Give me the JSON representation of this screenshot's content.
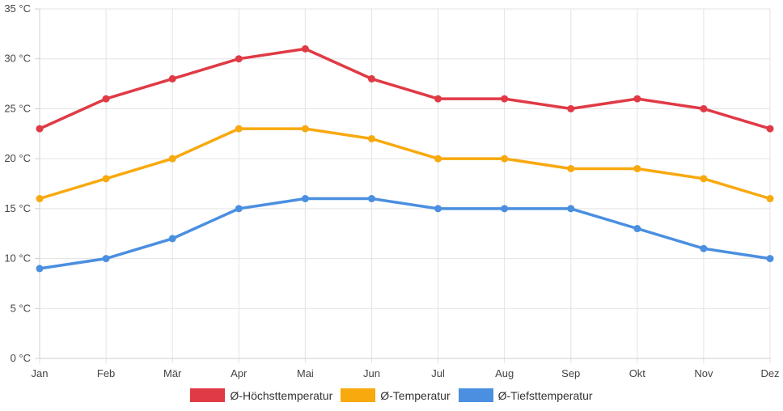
{
  "chart_data": {
    "type": "line",
    "title": "",
    "xlabel": "",
    "ylabel": "",
    "categories": [
      "Jan",
      "Feb",
      "Mär",
      "Apr",
      "Mai",
      "Jun",
      "Jul",
      "Aug",
      "Sep",
      "Okt",
      "Nov",
      "Dez"
    ],
    "y_ticks": [
      "0 °C",
      "5 °C",
      "10 °C",
      "15 °C",
      "20 °C",
      "25 °C",
      "30 °C",
      "35 °C"
    ],
    "ylim": [
      0,
      35
    ],
    "grid": true,
    "legend_position": "bottom",
    "series": [
      {
        "name": "Ø-Höchsttemperatur",
        "color": "#e03a45",
        "values": [
          23,
          26,
          28,
          30,
          31,
          28,
          26,
          26,
          25,
          26,
          25,
          23
        ]
      },
      {
        "name": "Ø-Temperatur",
        "color": "#f7a90e",
        "values": [
          16,
          18,
          20,
          23,
          23,
          22,
          20,
          20,
          19,
          19,
          18,
          16
        ]
      },
      {
        "name": "Ø-Tiefsttemperatur",
        "color": "#4a8fe0",
        "values": [
          9,
          10,
          12,
          15,
          16,
          16,
          15,
          15,
          15,
          13,
          11,
          10
        ]
      }
    ]
  }
}
